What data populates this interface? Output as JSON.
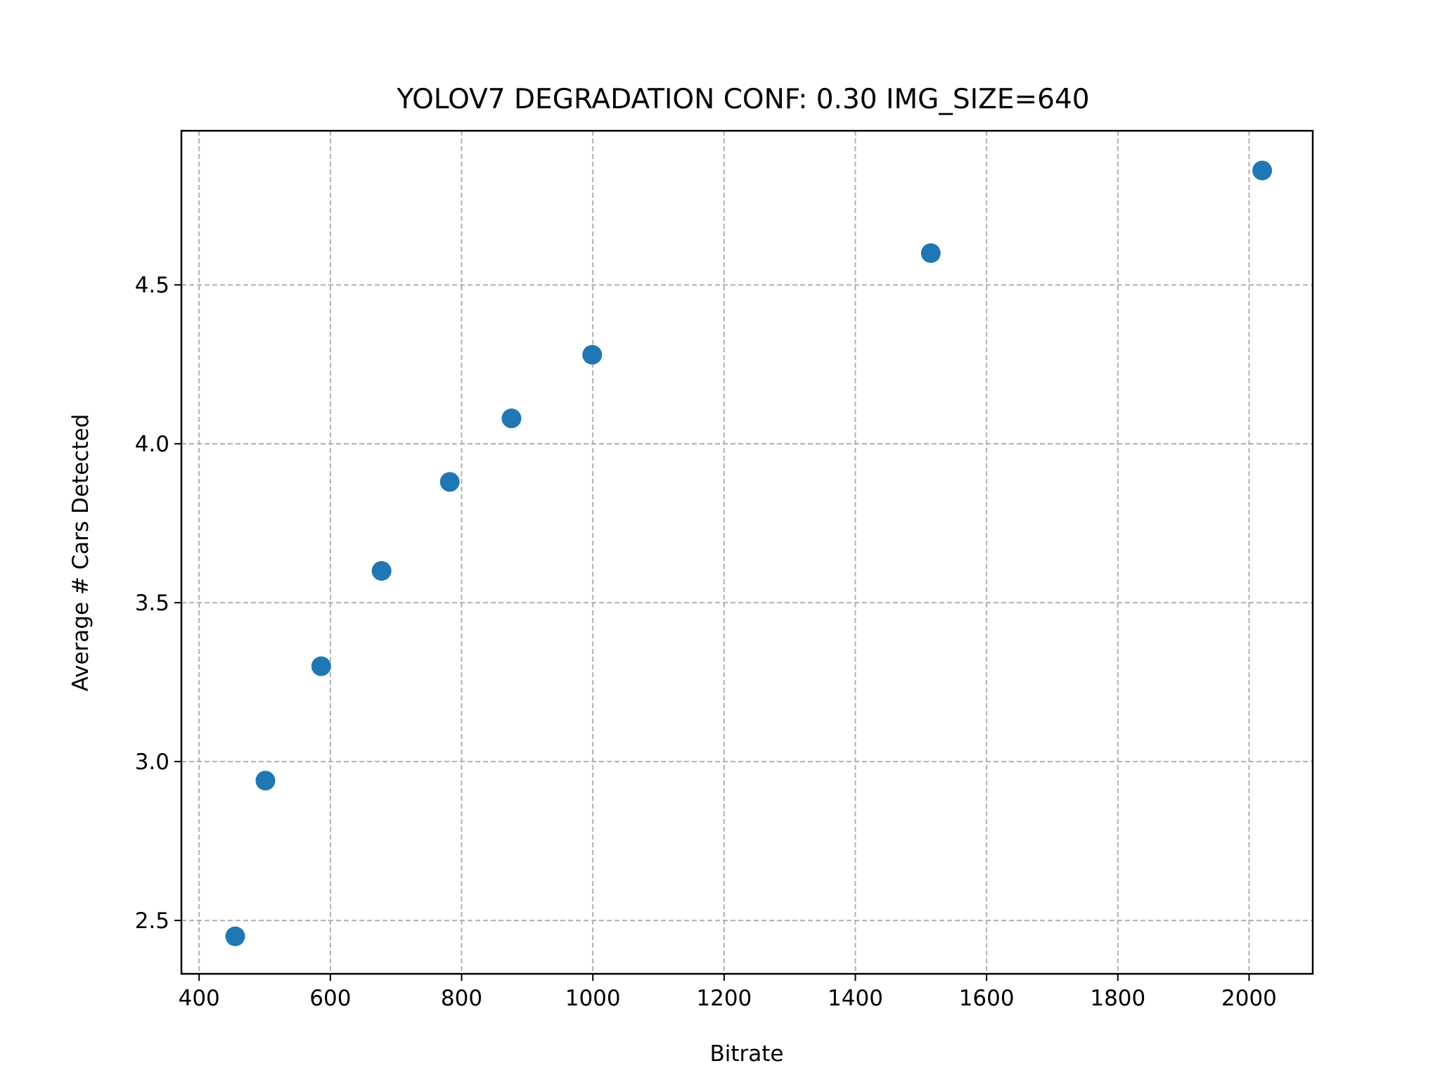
{
  "chart_data": {
    "type": "scatter",
    "title": "YOLOV7 DEGRADATION CONF: 0.30 IMG_SIZE=640",
    "xlabel": "Bitrate",
    "ylabel": "Average # Cars Detected",
    "xlim": [
      373,
      2097
    ],
    "ylim": [
      2.332,
      4.985
    ],
    "xticks": [
      400,
      600,
      800,
      1000,
      1200,
      1400,
      1600,
      1800,
      2000
    ],
    "yticks": [
      2.5,
      3.0,
      3.5,
      4.0,
      4.5
    ],
    "ytick_labels": [
      "2.5",
      "3.0",
      "3.5",
      "4.0",
      "4.5"
    ],
    "grid": true,
    "marker_color": "#1f77b4",
    "series": [
      {
        "x": [
          455,
          501,
          586,
          678,
          782,
          876,
          999,
          1515,
          2020
        ],
        "y": [
          2.45,
          2.94,
          3.3,
          3.6,
          3.88,
          4.08,
          4.28,
          4.6,
          4.86
        ]
      }
    ]
  }
}
